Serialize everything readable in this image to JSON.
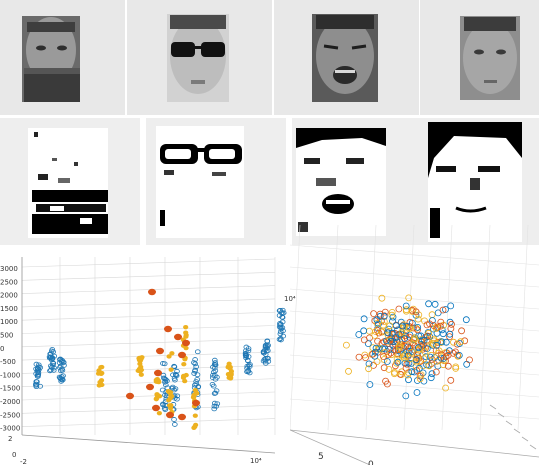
{
  "row1_faces": [
    {
      "id": "scarf-occluded-face"
    },
    {
      "id": "sunglasses-occluded-face"
    },
    {
      "id": "expression-shout-face"
    },
    {
      "id": "neutral-face"
    }
  ],
  "row2_masks": [
    {
      "id": "scarf-occlusion-mask"
    },
    {
      "id": "sunglasses-occlusion-mask"
    },
    {
      "id": "expression-mask"
    },
    {
      "id": "neutral-mask"
    }
  ],
  "plot_left": {
    "yticks": [
      "3000",
      "2500",
      "2000",
      "1500",
      "1000",
      "500",
      "0",
      "-500",
      "-1000",
      "-1500",
      "-2000",
      "-2500",
      "-3000"
    ],
    "ztick_labels": [
      "2",
      "0",
      "-2"
    ],
    "exp_bottom_right": "10⁴",
    "exp_right": "10⁴",
    "colors": {
      "blue": "#1f77b4",
      "orange": "#d95319",
      "yellow": "#edb120"
    }
  },
  "plot_right": {
    "xticks": [
      "5",
      "0"
    ],
    "colors": {
      "blue": "#0072bd",
      "orange": "#d95319",
      "yellow": "#edb120"
    }
  }
}
